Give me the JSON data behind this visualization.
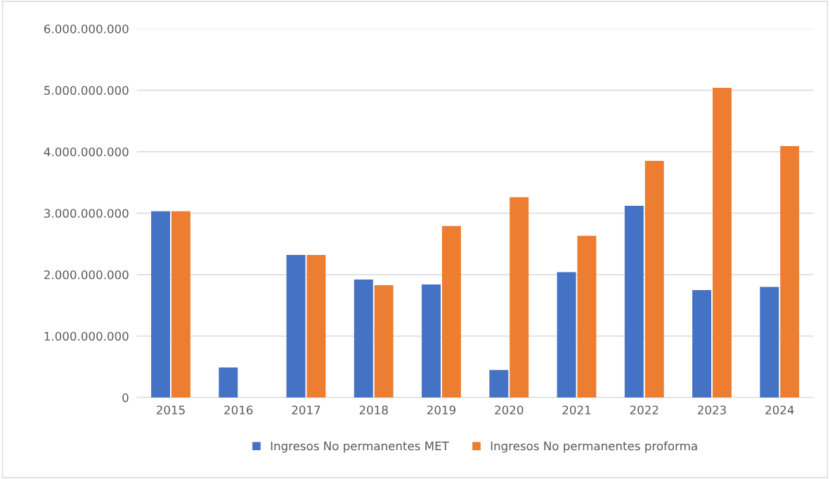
{
  "chart_data": {
    "type": "bar",
    "categories": [
      "2015",
      "2016",
      "2017",
      "2018",
      "2019",
      "2020",
      "2021",
      "2022",
      "2023",
      "2024"
    ],
    "series": [
      {
        "name": "Ingresos No permanentes MET",
        "color": "#4472c4",
        "values": [
          3030000000,
          490000000,
          2320000000,
          1920000000,
          1840000000,
          450000000,
          2040000000,
          3120000000,
          1750000000,
          1800000000
        ]
      },
      {
        "name": "Ingresos No permanentes proforma",
        "color": "#ed7d31",
        "values": [
          3030000000,
          null,
          2320000000,
          1830000000,
          2790000000,
          3260000000,
          2630000000,
          3850000000,
          5040000000,
          4090000000
        ]
      }
    ],
    "ylim": [
      0,
      6000000000
    ],
    "yticks": [
      {
        "value": 0,
        "label": "0"
      },
      {
        "value": 1000000000,
        "label": "1.000.000.000"
      },
      {
        "value": 2000000000,
        "label": "2.000.000.000"
      },
      {
        "value": 3000000000,
        "label": "3.000.000.000"
      },
      {
        "value": 4000000000,
        "label": "4.000.000.000"
      },
      {
        "value": 5000000000,
        "label": "5.000.000.000"
      },
      {
        "value": 6000000000,
        "label": "6.000.000.000"
      }
    ],
    "grid": "y",
    "legend": "bottom"
  }
}
